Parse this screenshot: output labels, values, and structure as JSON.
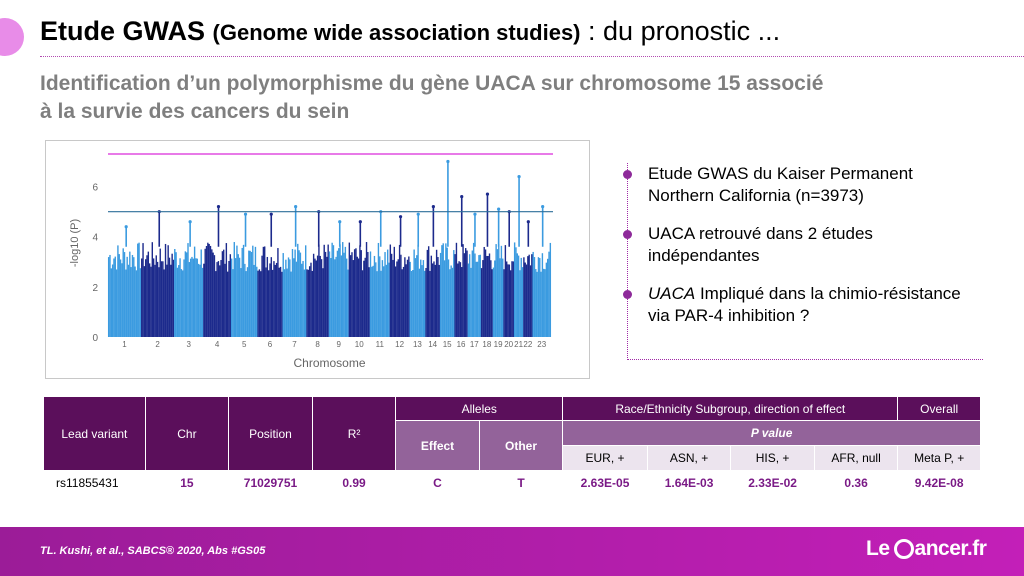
{
  "header": {
    "title_bold": "Etude GWAS",
    "title_paren": "(Genome wide association studies)",
    "title_rest": ": du pronostic ...",
    "subtitle_line1": "Identification d’un polymorphisme du gène UACA sur chromosome 15 associé",
    "subtitle_line2": "à la survie des cancers du sein"
  },
  "chart_data": {
    "type": "scatter",
    "subtype": "manhattan",
    "xlabel": "Chromosome",
    "ylabel": "-log10 (P)",
    "ylim": [
      0,
      7.5
    ],
    "yticks": [
      "0",
      "2",
      "4",
      "6"
    ],
    "categories": [
      "1",
      "2",
      "3",
      "4",
      "5",
      "6",
      "7",
      "8",
      "9",
      "10",
      "11",
      "12",
      "13",
      "14",
      "15",
      "16",
      "17",
      "18",
      "19",
      "20",
      "21",
      "22",
      "23"
    ],
    "peaks": [
      4.4,
      5.0,
      4.6,
      5.2,
      4.9,
      4.9,
      5.2,
      5.0,
      4.6,
      4.6,
      5.0,
      4.8,
      4.9,
      5.2,
      7.0,
      5.6,
      4.9,
      5.7,
      5.1,
      5.0,
      6.4,
      4.6,
      5.2
    ],
    "genome_wide_threshold": 7.3,
    "suggestive_threshold": 5.0,
    "threshold_colors": {
      "genome_wide": "#e14fe0",
      "suggestive": "#2e6f9a"
    },
    "series_colors": [
      "#3b9be0",
      "#1c2a8c"
    ]
  },
  "bullets": [
    {
      "lead": "",
      "text": "Etude GWAS du Kaiser Permanent Northern California (n=3973)"
    },
    {
      "lead": "",
      "text": "UACA retrouvé dans 2 études indépendantes"
    },
    {
      "lead": "UACA",
      "text": " Impliqué dans la chimio-résistance via PAR-4 inhibition ?"
    }
  ],
  "table": {
    "col_lead": "Lead variant",
    "col_chr": "Chr",
    "col_pos": "Position",
    "col_r2": "R²",
    "col_alleles": "Alleles",
    "col_race": "Race/Ethnicity Subgroup, direction of effect",
    "col_overall": "Overall",
    "col_effect": "Effect",
    "col_other": "Other",
    "col_pvalue": "P value",
    "sub_eur": "EUR, +",
    "sub_asn": "ASN, +",
    "sub_his": "HIS, +",
    "sub_afr": "AFR, null",
    "sub_meta": "Meta P, +",
    "row": {
      "variant": "rs11855431",
      "chr": "15",
      "position": "71029751",
      "r2": "0.99",
      "effect": "C",
      "other": "T",
      "eur": "2.63E-05",
      "asn": "1.64E-03",
      "his": "2.33E-02",
      "afr": "0.36",
      "meta": "9.42E-08"
    }
  },
  "footer": {
    "reference": "TL. Kushi, et al., SABCS® 2020, Abs #GS05",
    "logo_left": "Le",
    "logo_right": "ancer.fr"
  },
  "colors": {
    "accent": "#9b1c98",
    "table_dark": "#5b0f5b",
    "table_mid": "#93639a"
  }
}
